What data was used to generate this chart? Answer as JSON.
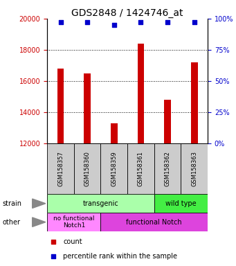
{
  "title": "GDS2848 / 1424746_at",
  "samples": [
    "GSM158357",
    "GSM158360",
    "GSM158359",
    "GSM158361",
    "GSM158362",
    "GSM158363"
  ],
  "counts": [
    16800,
    16500,
    13300,
    18400,
    14800,
    17200
  ],
  "percentiles": [
    97,
    97,
    95,
    97,
    97,
    97
  ],
  "ylim_left": [
    12000,
    20000
  ],
  "ylim_right": [
    0,
    100
  ],
  "yticks_left": [
    12000,
    14000,
    16000,
    18000,
    20000
  ],
  "yticks_right": [
    0,
    25,
    50,
    75,
    100
  ],
  "bar_color": "#cc0000",
  "dot_color": "#0000cc",
  "bar_width": 0.25,
  "strain_transgenic_color": "#aaffaa",
  "strain_wildtype_color": "#44ee44",
  "other_nofunc_color": "#ff88ff",
  "other_func_color": "#dd44dd",
  "sample_box_color": "#cccccc",
  "left_axis_color": "#cc0000",
  "right_axis_color": "#0000cc",
  "background_color": "#ffffff",
  "title_fontsize": 10,
  "tick_fontsize": 7,
  "sample_fontsize": 6,
  "annot_fontsize": 7,
  "legend_fontsize": 7
}
